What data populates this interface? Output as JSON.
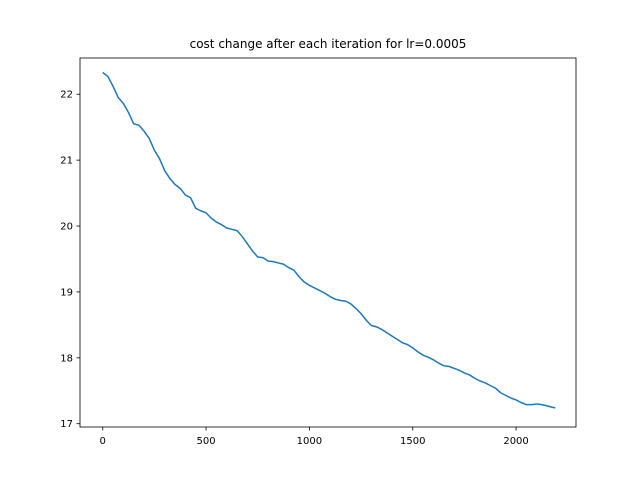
{
  "chart_data": {
    "type": "line",
    "title": "cost change after each iteration for lr=0.0005",
    "xlabel": "",
    "ylabel": "",
    "xlim": [
      -110,
      2290
    ],
    "ylim": [
      16.95,
      22.55
    ],
    "xticks": [
      0,
      500,
      1000,
      1500,
      2000
    ],
    "yticks": [
      17,
      18,
      19,
      20,
      21,
      22
    ],
    "grid": false,
    "legend": "none",
    "series": [
      {
        "color": "#1f77b4",
        "x": [
          0,
          25,
          50,
          75,
          100,
          125,
          150,
          175,
          200,
          225,
          250,
          275,
          300,
          325,
          350,
          375,
          400,
          425,
          450,
          475,
          500,
          525,
          550,
          575,
          600,
          625,
          650,
          675,
          700,
          725,
          750,
          775,
          800,
          825,
          850,
          875,
          900,
          925,
          950,
          975,
          1000,
          1025,
          1050,
          1075,
          1100,
          1125,
          1150,
          1175,
          1200,
          1225,
          1250,
          1275,
          1300,
          1325,
          1350,
          1375,
          1400,
          1425,
          1450,
          1475,
          1500,
          1525,
          1550,
          1575,
          1600,
          1625,
          1650,
          1675,
          1700,
          1725,
          1750,
          1775,
          1800,
          1825,
          1850,
          1875,
          1900,
          1925,
          1950,
          1975,
          2000,
          2025,
          2050,
          2075,
          2100,
          2125,
          2150,
          2175,
          2190
        ],
        "y": [
          22.33,
          22.27,
          22.12,
          21.95,
          21.86,
          21.72,
          21.55,
          21.53,
          21.44,
          21.33,
          21.15,
          21.02,
          20.84,
          20.72,
          20.63,
          20.57,
          20.47,
          20.43,
          20.27,
          20.23,
          20.2,
          20.12,
          20.06,
          20.02,
          19.97,
          19.95,
          19.93,
          19.84,
          19.73,
          19.62,
          19.53,
          19.52,
          19.47,
          19.46,
          19.44,
          19.42,
          19.37,
          19.33,
          19.23,
          19.15,
          19.1,
          19.06,
          19.02,
          18.98,
          18.93,
          18.89,
          18.87,
          18.86,
          18.82,
          18.75,
          18.67,
          18.57,
          18.49,
          18.47,
          18.43,
          18.38,
          18.33,
          18.28,
          18.23,
          18.2,
          18.15,
          18.09,
          18.04,
          18.01,
          17.97,
          17.92,
          17.88,
          17.87,
          17.84,
          17.81,
          17.77,
          17.74,
          17.69,
          17.65,
          17.62,
          17.58,
          17.54,
          17.47,
          17.43,
          17.39,
          17.36,
          17.32,
          17.29,
          17.29,
          17.3,
          17.29,
          17.27,
          17.25,
          17.24
        ]
      }
    ]
  }
}
